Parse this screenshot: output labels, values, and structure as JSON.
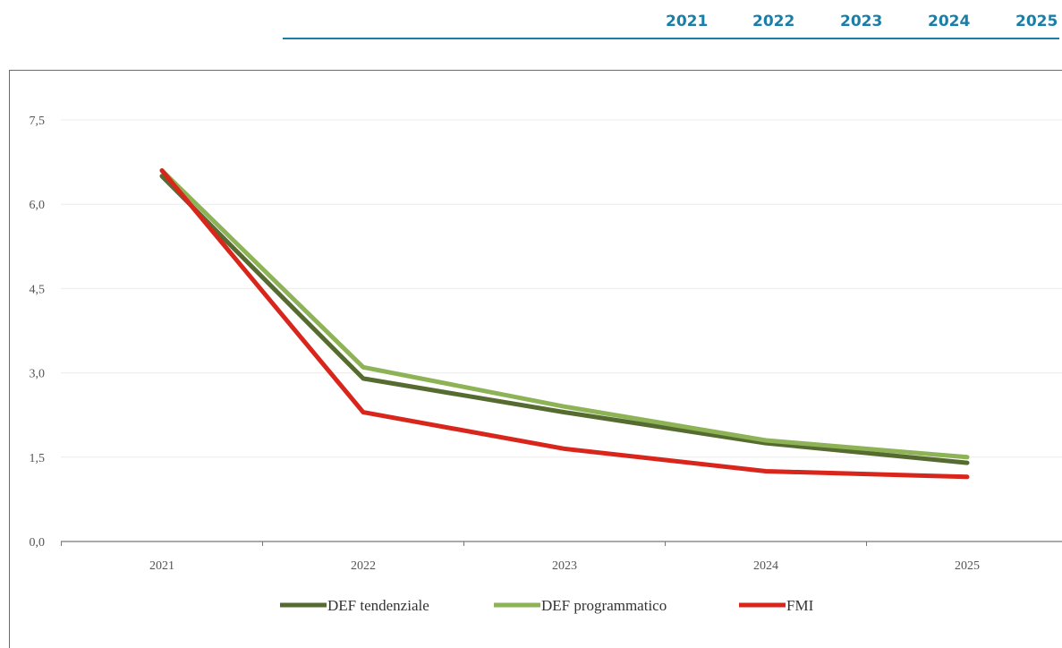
{
  "table_header": {
    "years": [
      "2021",
      "2022",
      "2023",
      "2024",
      "2025"
    ]
  },
  "chart_data": {
    "type": "line",
    "title": "",
    "xlabel": "",
    "ylabel": "",
    "categories": [
      "2021",
      "2022",
      "2023",
      "2024",
      "2025"
    ],
    "yticks": [
      "0,0",
      "1,5",
      "3,0",
      "4,5",
      "6,0",
      "7,5"
    ],
    "ylim": [
      0,
      7.5
    ],
    "grid": true,
    "legend_position": "bottom",
    "series": [
      {
        "name": "DEF tendenziale",
        "values": [
          6.5,
          2.9,
          2.3,
          1.75,
          1.4
        ],
        "color": "#556b2f"
      },
      {
        "name": "DEF programmatico",
        "values": [
          6.6,
          3.1,
          2.4,
          1.8,
          1.5
        ],
        "color": "#8db356"
      },
      {
        "name": "FMI",
        "values": [
          6.6,
          2.3,
          1.65,
          1.25,
          1.15
        ],
        "color": "#d9261c"
      }
    ]
  }
}
